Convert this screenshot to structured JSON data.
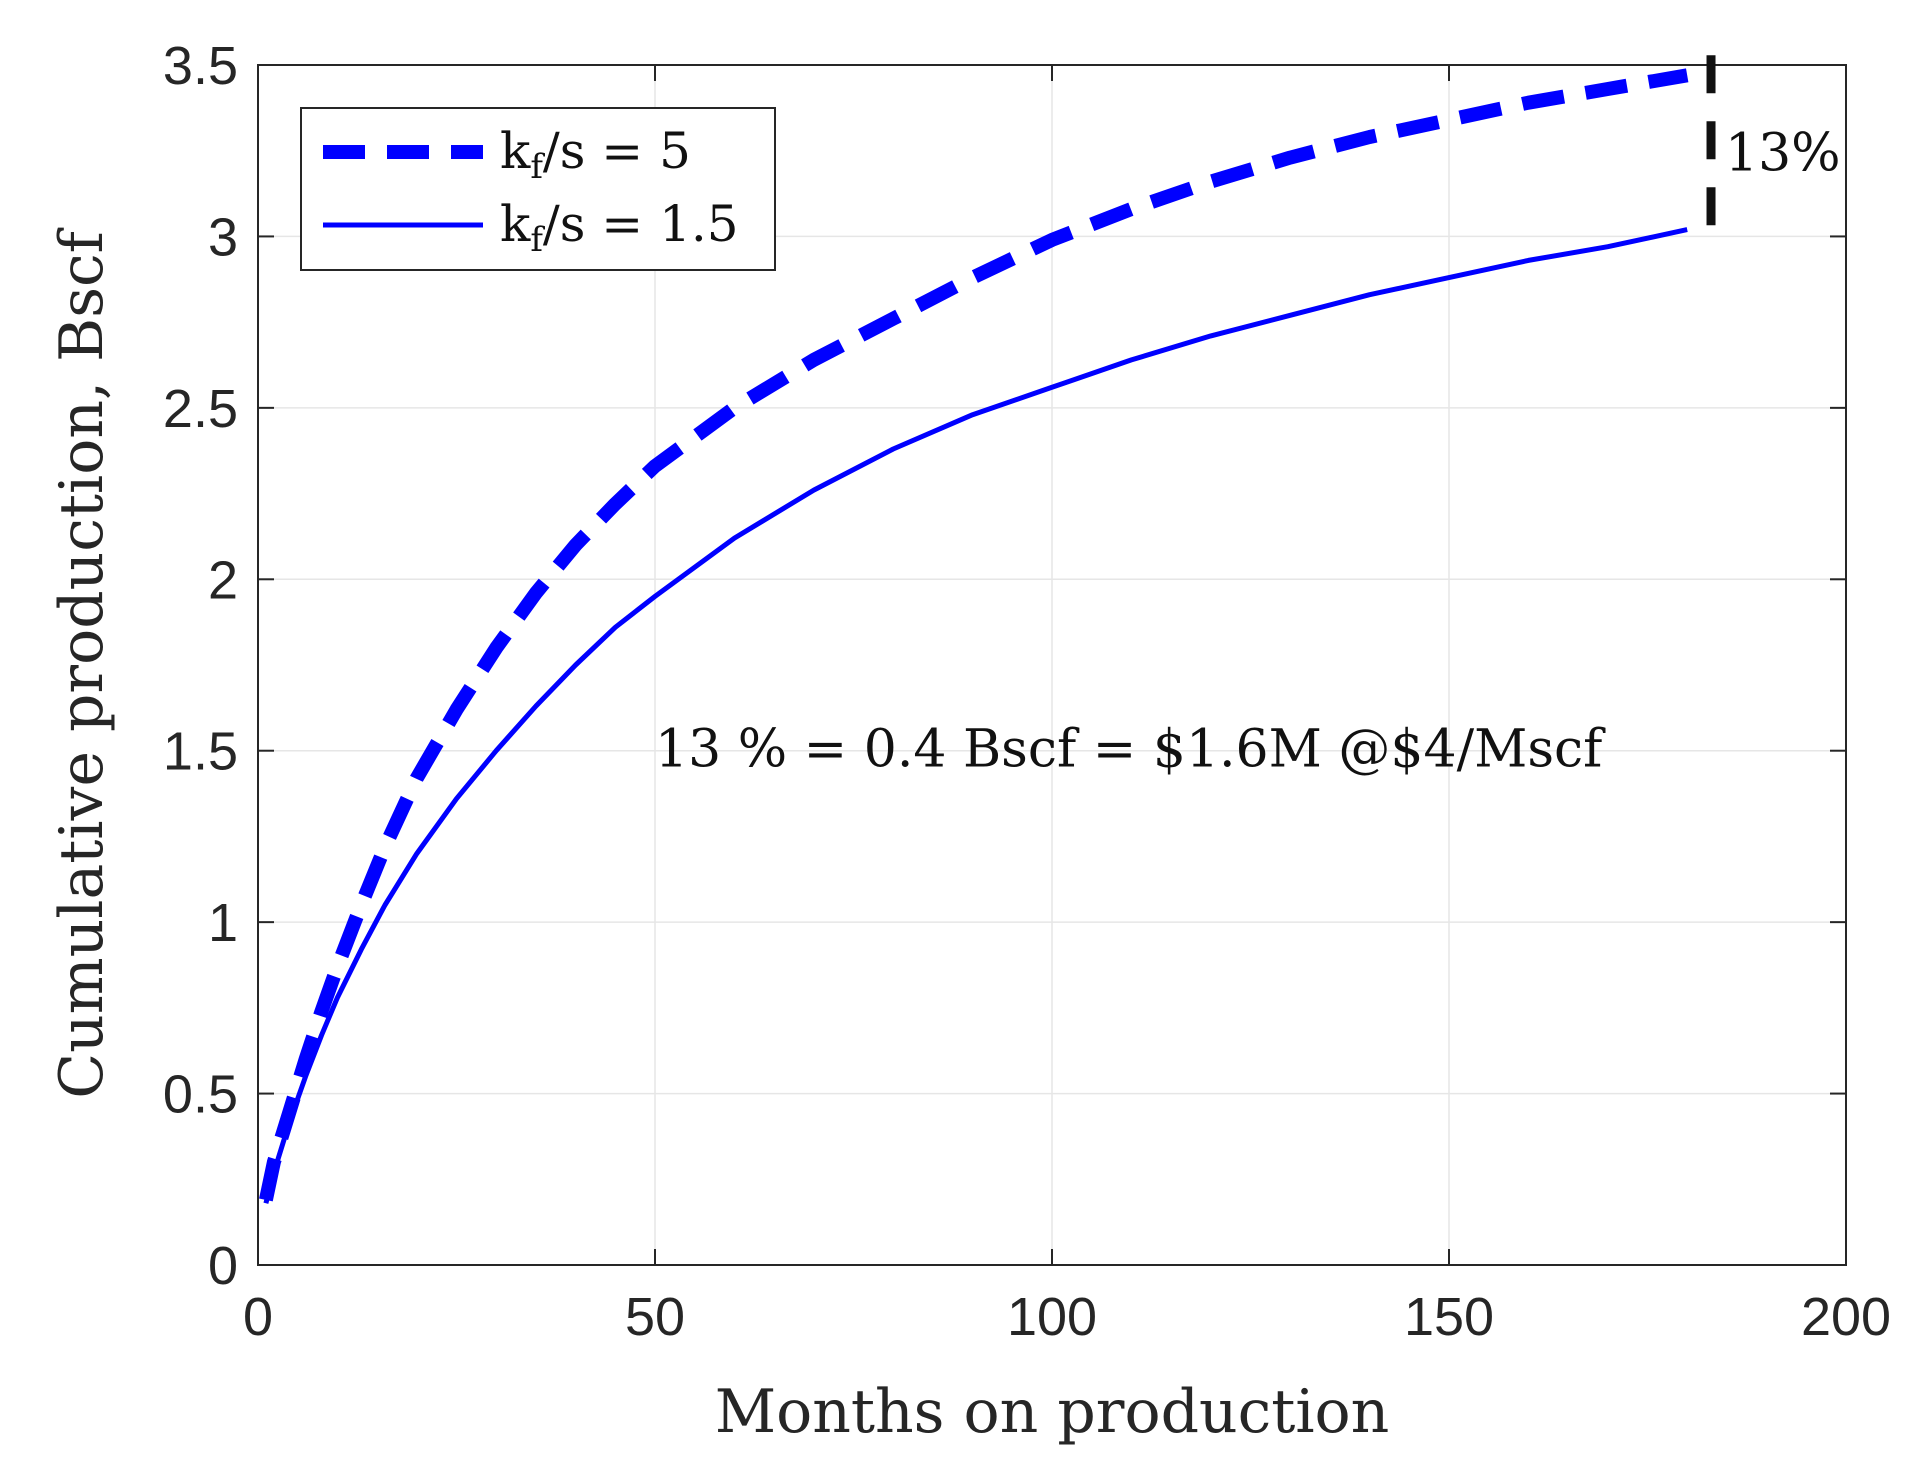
{
  "chart_data": {
    "type": "line",
    "xlabel": "Months on production",
    "ylabel": "Cumulative production, Bscf",
    "xlim": [
      0,
      200
    ],
    "ylim": [
      0,
      3.5
    ],
    "xticks": [
      0,
      50,
      100,
      150,
      200
    ],
    "yticks": [
      0,
      0.5,
      1,
      1.5,
      2,
      2.5,
      3,
      3.5
    ],
    "xtick_labels": [
      "0",
      "50",
      "100",
      "150",
      "200"
    ],
    "ytick_labels": [
      "0",
      "0.5",
      "1",
      "1.5",
      "2",
      "2.5",
      "3",
      "3.5"
    ],
    "grid": true,
    "legend_position": "top-left",
    "series": [
      {
        "name": "k_f/s = 5",
        "legend_main": "k",
        "legend_sub": "f",
        "legend_rest": "/s = 5",
        "style": "dashed",
        "color": "#0000ff",
        "x": [
          1,
          2,
          4,
          6,
          8,
          10,
          13,
          16,
          20,
          25,
          30,
          35,
          40,
          45,
          50,
          60,
          70,
          80,
          90,
          100,
          110,
          120,
          130,
          140,
          150,
          160,
          170,
          180
        ],
        "y": [
          0.19,
          0.3,
          0.45,
          0.6,
          0.74,
          0.87,
          1.05,
          1.22,
          1.42,
          1.62,
          1.8,
          1.96,
          2.1,
          2.22,
          2.33,
          2.5,
          2.64,
          2.76,
          2.88,
          2.99,
          3.08,
          3.16,
          3.23,
          3.29,
          3.34,
          3.39,
          3.43,
          3.47
        ]
      },
      {
        "name": "k_f/s = 1.5",
        "legend_main": "k",
        "legend_sub": "f",
        "legend_rest": "/s = 1.5",
        "style": "solid",
        "color": "#0000ff",
        "x": [
          1,
          2,
          4,
          6,
          8,
          10,
          13,
          16,
          20,
          25,
          30,
          35,
          40,
          45,
          50,
          60,
          70,
          80,
          90,
          100,
          110,
          120,
          130,
          140,
          150,
          160,
          170,
          180
        ],
        "y": [
          0.18,
          0.27,
          0.42,
          0.55,
          0.67,
          0.78,
          0.92,
          1.05,
          1.2,
          1.36,
          1.5,
          1.63,
          1.75,
          1.86,
          1.95,
          2.12,
          2.26,
          2.38,
          2.48,
          2.56,
          2.64,
          2.71,
          2.77,
          2.83,
          2.88,
          2.93,
          2.97,
          3.02
        ]
      }
    ],
    "annotations": {
      "gap_label": "13%",
      "gap_at_x": 183,
      "gap_from": 3.02,
      "gap_to": 3.47,
      "summary_text": "13 % = 0.4 Bscf = $1.6M @$4/Mscf",
      "summary_at": [
        50,
        1.5
      ]
    }
  }
}
